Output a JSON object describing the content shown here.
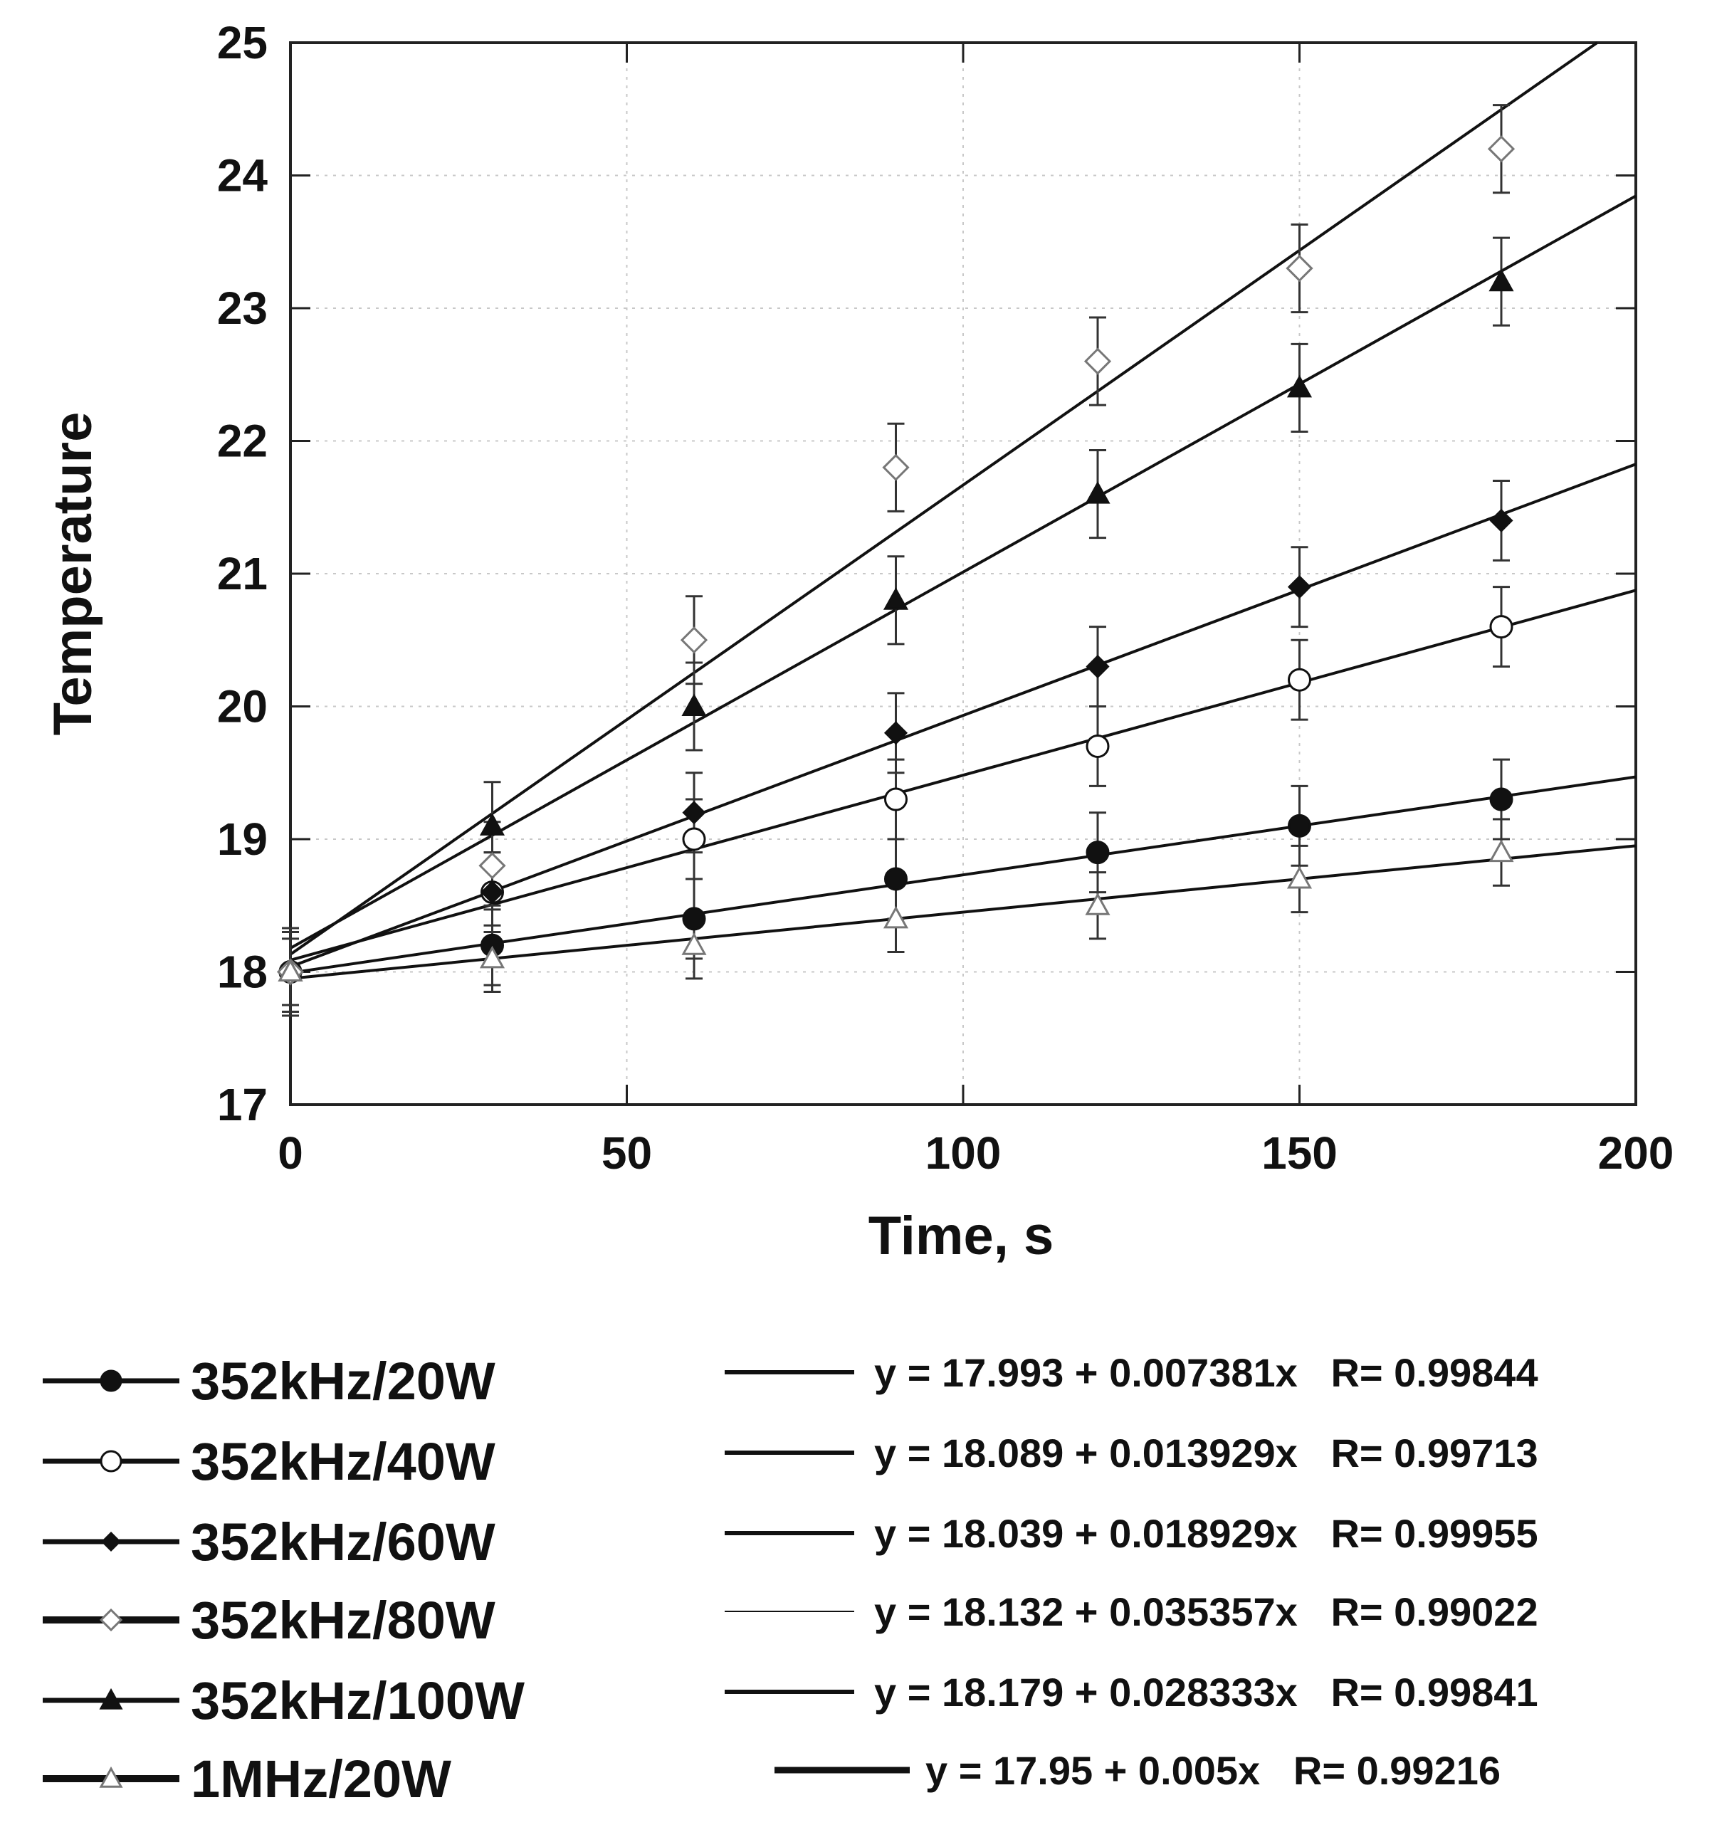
{
  "chart_data": {
    "type": "scatter",
    "title": "",
    "xlabel": "Time, s",
    "ylabel": "Temperature",
    "xlim": [
      0,
      200
    ],
    "ylim": [
      17,
      25
    ],
    "x_ticks": [
      "0",
      "50",
      "100",
      "150",
      "200"
    ],
    "y_ticks": [
      "17",
      "18",
      "19",
      "20",
      "21",
      "22",
      "23",
      "24",
      "25"
    ],
    "x_tick_values": [
      0,
      50,
      100,
      150,
      200
    ],
    "y_tick_values": [
      17,
      18,
      19,
      20,
      21,
      22,
      23,
      24,
      25
    ],
    "grid": true,
    "legend_position": "bottom",
    "x": [
      0,
      30,
      60,
      90,
      120,
      150,
      180
    ],
    "series": [
      {
        "name": "352kHz/20W",
        "marker": "filled-circle",
        "values": [
          18.0,
          18.2,
          18.4,
          18.7,
          18.9,
          19.1,
          19.3
        ],
        "error": 0.3
      },
      {
        "name": "352kHz/40W",
        "marker": "open-circle",
        "values": [
          18.0,
          18.6,
          19.0,
          19.3,
          19.7,
          20.2,
          20.6
        ],
        "error": 0.3
      },
      {
        "name": "352kHz/60W",
        "marker": "filled-diamond",
        "values": [
          18.0,
          18.6,
          19.2,
          19.8,
          20.3,
          20.9,
          21.4
        ],
        "error": 0.3
      },
      {
        "name": "352kHz/80W",
        "marker": "open-diamond",
        "values": [
          18.0,
          18.8,
          20.5,
          21.8,
          22.6,
          23.3,
          24.2
        ],
        "error": 0.33
      },
      {
        "name": "352kHz/100W",
        "marker": "filled-triangle",
        "values": [
          18.0,
          19.1,
          20.0,
          20.8,
          21.6,
          22.4,
          23.2
        ],
        "error": 0.33
      },
      {
        "name": "1MHz/20W",
        "marker": "open-triangle",
        "values": [
          18.0,
          18.1,
          18.2,
          18.4,
          18.5,
          18.7,
          18.9
        ],
        "error": 0.25
      }
    ],
    "fits": [
      {
        "label": "y = 17.993 + 0.007381x   R= 0.99844",
        "intercept": 17.993,
        "slope": 0.007381
      },
      {
        "label": "y = 18.089 + 0.013929x   R= 0.99713",
        "intercept": 18.089,
        "slope": 0.013929
      },
      {
        "label": "y = 18.039 + 0.018929x   R= 0.99955",
        "intercept": 18.039,
        "slope": 0.018929
      },
      {
        "label": "y = 18.132 + 0.035357x   R= 0.99022",
        "intercept": 18.132,
        "slope": 0.035357
      },
      {
        "label": "y = 18.179 + 0.028333x   R= 0.99841",
        "intercept": 18.179,
        "slope": 0.028333
      },
      {
        "label": "y = 17.95 + 0.005x   R= 0.99216",
        "intercept": 17.95,
        "slope": 0.005
      }
    ]
  }
}
